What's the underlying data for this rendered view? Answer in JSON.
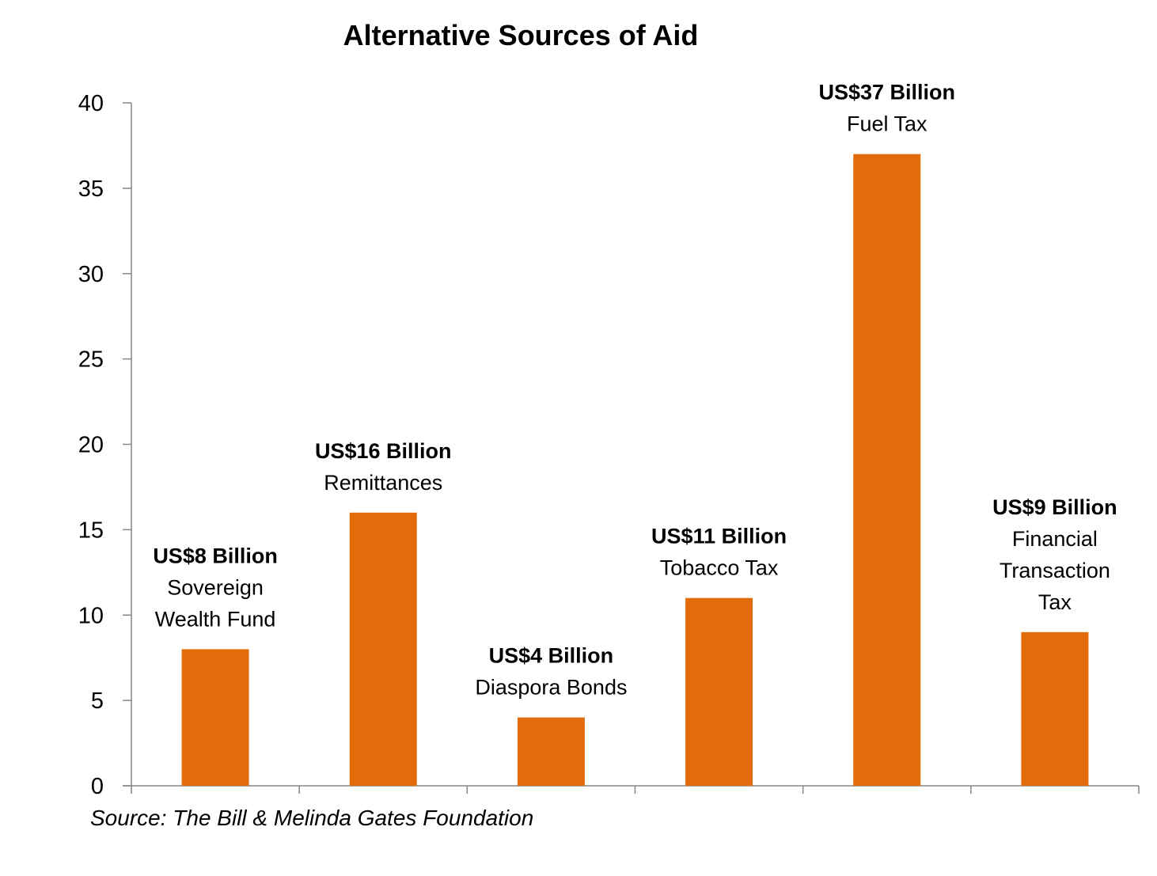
{
  "chart_data": {
    "type": "bar",
    "title": "Alternative Sources of Aid",
    "categories": [
      "Sovereign Wealth Fund",
      "Remittances",
      "Diaspora Bonds",
      "Tobacco Tax",
      "Fuel Tax",
      "Financial Transaction Tax"
    ],
    "values": [
      8,
      16,
      4,
      11,
      37,
      9
    ],
    "data_labels": [
      {
        "value_text": "US$8 Billion",
        "name_lines": [
          "Sovereign",
          "Wealth Fund"
        ]
      },
      {
        "value_text": "US$16 Billion",
        "name_lines": [
          "Remittances"
        ]
      },
      {
        "value_text": "US$4 Billion",
        "name_lines": [
          "Diaspora Bonds"
        ]
      },
      {
        "value_text": "US$11 Billion",
        "name_lines": [
          "Tobacco Tax"
        ]
      },
      {
        "value_text": "US$37 Billion",
        "name_lines": [
          "Fuel Tax"
        ]
      },
      {
        "value_text": "US$9 Billion",
        "name_lines": [
          "Financial",
          "Transaction",
          "Tax"
        ]
      }
    ],
    "xlabel": "",
    "ylabel": "",
    "ylim": [
      0,
      40
    ],
    "yticks": [
      "0",
      "5",
      "10",
      "15",
      "20",
      "25",
      "30",
      "35",
      "40"
    ],
    "grid": false,
    "legend": "none",
    "bar_color": "#E36C0A"
  },
  "source_note": "Source: The Bill & Melinda Gates Foundation"
}
